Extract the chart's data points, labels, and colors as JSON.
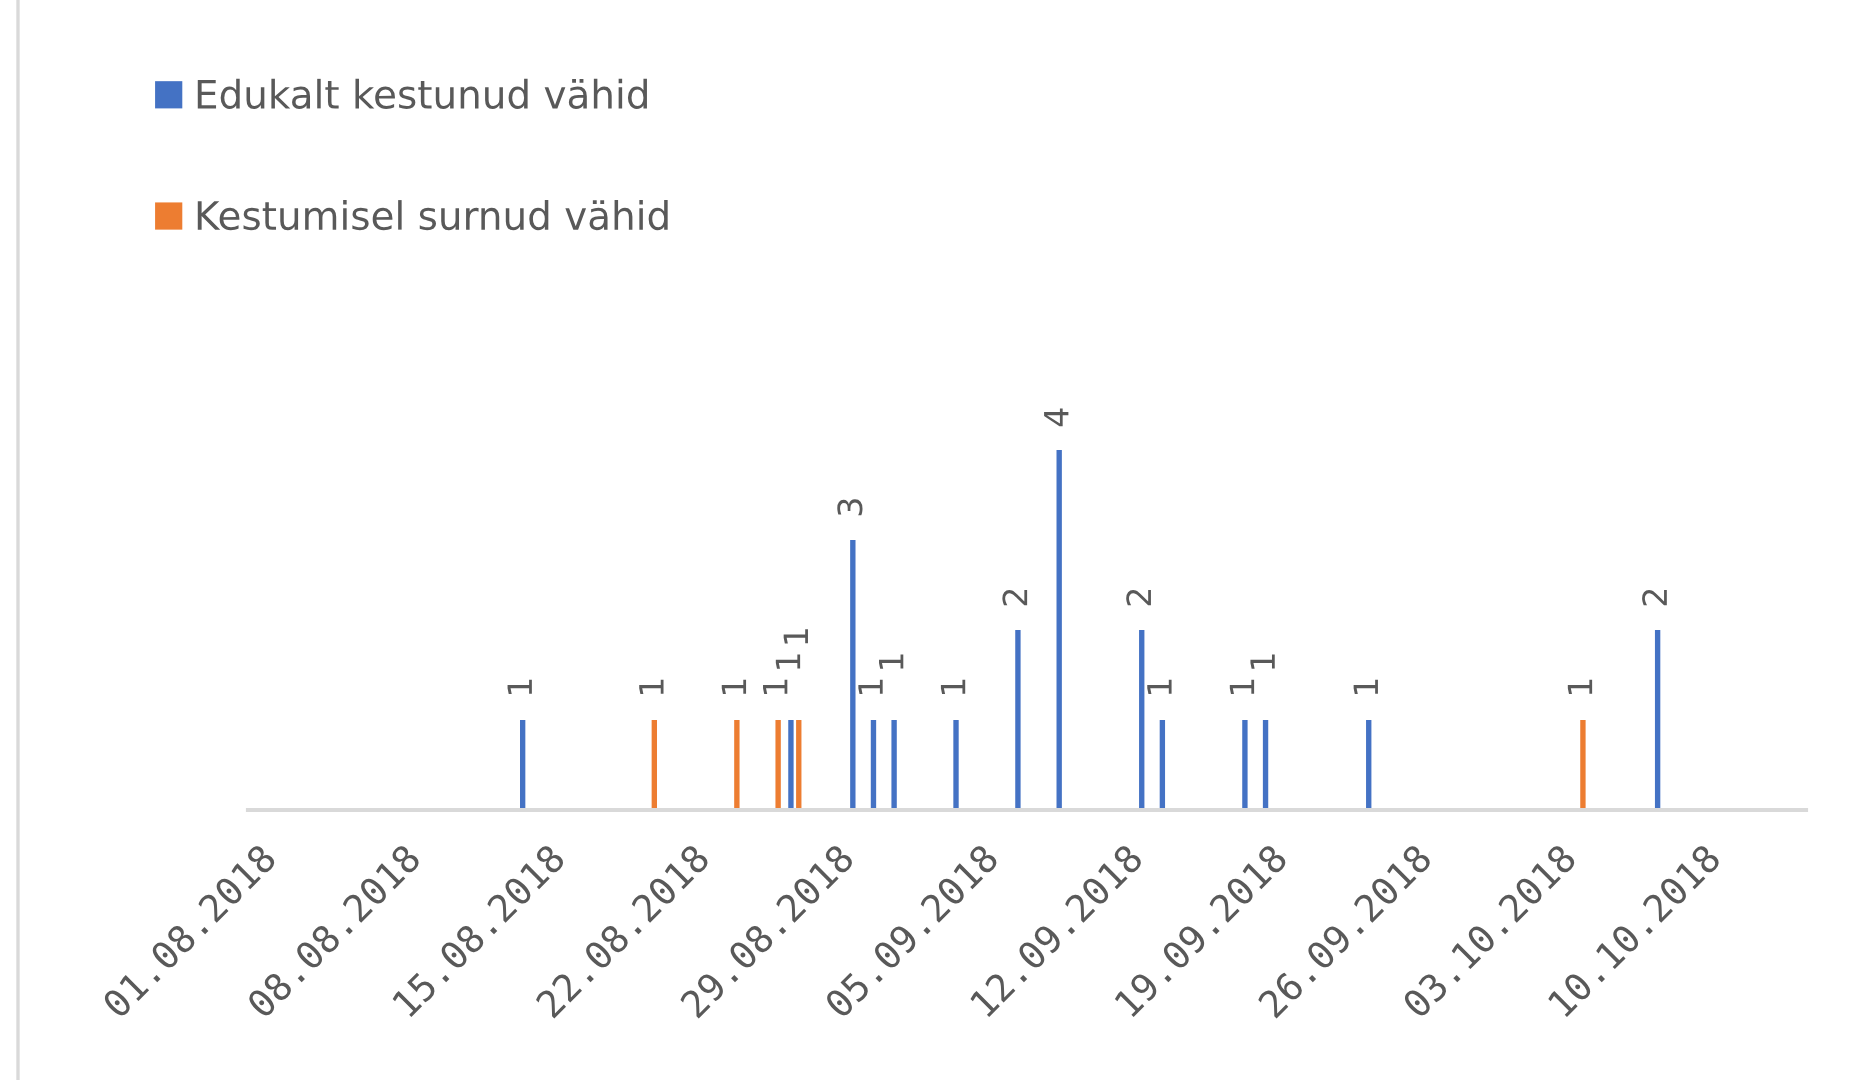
{
  "chart_data": {
    "type": "bar",
    "xlim": [
      "2018-07-31T12:00",
      "2018-10-15"
    ],
    "xticks": [
      {
        "value": "2018-08-01",
        "label": "01.08.2018"
      },
      {
        "value": "2018-08-08",
        "label": "08.08.2018"
      },
      {
        "value": "2018-08-15",
        "label": "15.08.2018"
      },
      {
        "value": "2018-08-22",
        "label": "22.08.2018"
      },
      {
        "value": "2018-08-29",
        "label": "29.08.2018"
      },
      {
        "value": "2018-09-05",
        "label": "05.09.2018"
      },
      {
        "value": "2018-09-12",
        "label": "12.09.2018"
      },
      {
        "value": "2018-09-19",
        "label": "19.09.2018"
      },
      {
        "value": "2018-09-26",
        "label": "26.09.2018"
      },
      {
        "value": "2018-10-03",
        "label": "03.10.2018"
      },
      {
        "value": "2018-10-10",
        "label": "10.10.2018"
      }
    ],
    "series": [
      {
        "name": "Edukalt kestunud vähid",
        "color": "#4472c4",
        "x": [
          "2018-08-14",
          "2018-08-27",
          "2018-08-30",
          "2018-08-31",
          "2018-09-01",
          "2018-09-04",
          "2018-09-07",
          "2018-09-09",
          "2018-09-13",
          "2018-09-14",
          "2018-09-18",
          "2018-09-19",
          "2018-09-24",
          "2018-10-08"
        ],
        "values": [
          1,
          1,
          3,
          1,
          1,
          1,
          2,
          4,
          2,
          1,
          1,
          1,
          1,
          2
        ]
      },
      {
        "name": "Kestumisel surnud vähid",
        "color": "#ed7d31",
        "x": [
          "2018-08-20",
          "2018-08-24",
          "2018-08-26",
          "2018-08-27",
          "2018-10-04"
        ],
        "values": [
          1,
          1,
          1,
          1,
          1
        ]
      }
    ],
    "data_labels": true,
    "legend": "top left",
    "tick_labels": "x"
  }
}
